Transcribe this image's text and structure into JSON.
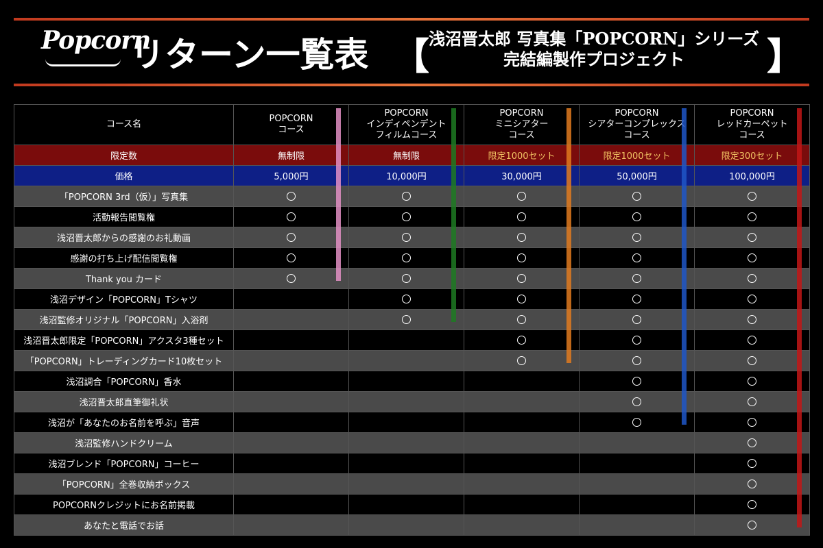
{
  "header": {
    "logo": "Popcorn",
    "title": "リターン一覧表",
    "bracket_left": "【",
    "bracket_right": "】",
    "subtitle_line1": "浅沼晋太郎 写真集「POPCORN」シリーズ",
    "subtitle_line2": "完結編製作プロジェクト"
  },
  "table": {
    "course_header": "コース名",
    "courses": [
      {
        "line1": "POPCORN",
        "line2": "コース",
        "line3": "",
        "limit": "無制限",
        "limit_gold": false,
        "price": "5,000円",
        "color": "#e38fc4",
        "last_row": 4
      },
      {
        "line1": "POPCORN",
        "line2": "インディペンデント",
        "line3": "フィルムコース",
        "limit": "無制限",
        "limit_gold": false,
        "price": "10,000円",
        "color": "#1d7a22",
        "last_row": 6
      },
      {
        "line1": "POPCORN",
        "line2": "ミニシアター",
        "line3": "コース",
        "limit": "限定1000セット",
        "limit_gold": true,
        "price": "30,000円",
        "color": "#e07a1f",
        "last_row": 8
      },
      {
        "line1": "POPCORN",
        "line2": "シアターコンプレックス",
        "line3": "コース",
        "limit": "限定1000セット",
        "limit_gold": true,
        "price": "50,000円",
        "color": "#1e56c7",
        "last_row": 11
      },
      {
        "line1": "POPCORN",
        "line2": "レッドカーペット",
        "line3": "コース",
        "limit": "限定300セット",
        "limit_gold": true,
        "price": "100,000円",
        "color": "#c21616",
        "last_row": 16
      }
    ],
    "limit_label": "限定数",
    "price_label": "価格",
    "circle": "○",
    "items": [
      "「POPCORN 3rd（仮）」写真集",
      "活動報告閲覧権",
      "浅沼晋太郎からの感謝のお礼動画",
      "感謝の打ち上げ配信閲覧権",
      "Thank you カード",
      "浅沼デザイン「POPCORN」Tシャツ",
      "浅沼監修オリジナル「POPCORN」入浴剤",
      "浅沼晋太郎限定「POPCORN」アクスタ3種セット",
      "「POPCORN」トレーディングカード10枚セット",
      "浅沼調合「POPCORN」香水",
      "浅沼晋太郎直筆御礼状",
      "浅沼が「あなたのお名前を呼ぶ」音声",
      "浅沼監修ハンドクリーム",
      "浅沼ブレンド「POPCORN」コーヒー",
      "「POPCORN」全巻収納ボックス",
      "POPCORNクレジットにお名前掲載",
      "あなたと電話でお話"
    ]
  }
}
